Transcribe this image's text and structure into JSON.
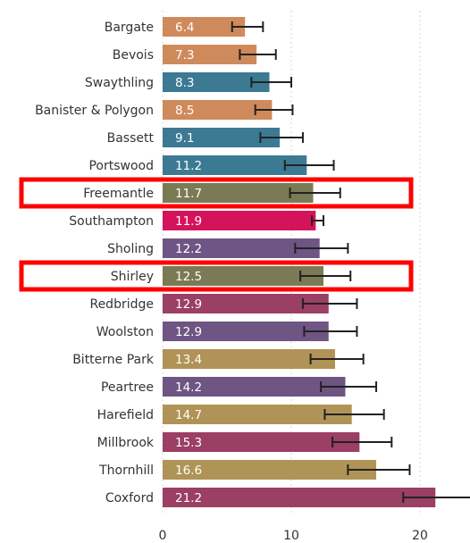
{
  "chart_data": {
    "type": "bar",
    "orientation": "horizontal",
    "categories": [
      "Bargate",
      "Bevois",
      "Swaythling",
      "Banister & Polygon",
      "Bassett",
      "Portswood",
      "Freemantle",
      "Southampton",
      "Sholing",
      "Shirley",
      "Redbridge",
      "Woolston",
      "Bitterne Park",
      "Peartree",
      "Harefield",
      "Millbrook",
      "Thornhill",
      "Coxford"
    ],
    "values": [
      6.4,
      7.3,
      8.3,
      8.5,
      9.1,
      11.2,
      11.7,
      11.9,
      12.2,
      12.5,
      12.9,
      12.9,
      13.4,
      14.2,
      14.7,
      15.3,
      16.6,
      21.2
    ],
    "value_labels": [
      "6.4",
      "7.3",
      "8.3",
      "8.5",
      "9.1",
      "11.2",
      "11.7",
      "11.9",
      "12.2",
      "12.5",
      "12.9",
      "12.9",
      "13.4",
      "14.2",
      "14.7",
      "15.3",
      "16.6",
      "21.2"
    ],
    "error_low": [
      5.4,
      6.0,
      6.9,
      7.2,
      7.6,
      9.5,
      9.9,
      11.6,
      10.3,
      10.7,
      10.9,
      11.0,
      11.5,
      12.3,
      12.6,
      13.2,
      14.4,
      18.7
    ],
    "error_high": [
      7.8,
      8.8,
      10.0,
      10.1,
      10.9,
      13.3,
      13.8,
      12.5,
      14.4,
      14.6,
      15.1,
      15.1,
      15.6,
      16.6,
      17.2,
      17.8,
      19.2,
      24.0
    ],
    "bar_colors": [
      "#cf8a5c",
      "#cf8a5c",
      "#3c7a93",
      "#cf8a5c",
      "#3c7a93",
      "#3c7a93",
      "#7a7a54",
      "#d4135c",
      "#6e5583",
      "#7a7a54",
      "#9b3f65",
      "#6e5583",
      "#b09356",
      "#6e5583",
      "#b09356",
      "#9b3f65",
      "#b09356",
      "#9b3f65"
    ],
    "highlighted": [
      "Freemantle",
      "Shirley"
    ],
    "highlight_color": "#ff0000",
    "error_bar_color": "#222222",
    "x_ticks": [
      0,
      10,
      20
    ],
    "x_tick_labels": [
      "0",
      "10",
      "20"
    ],
    "xlim": [
      0,
      24
    ],
    "grid": "vertical-dotted",
    "title": "",
    "xlabel": "",
    "ylabel": ""
  }
}
